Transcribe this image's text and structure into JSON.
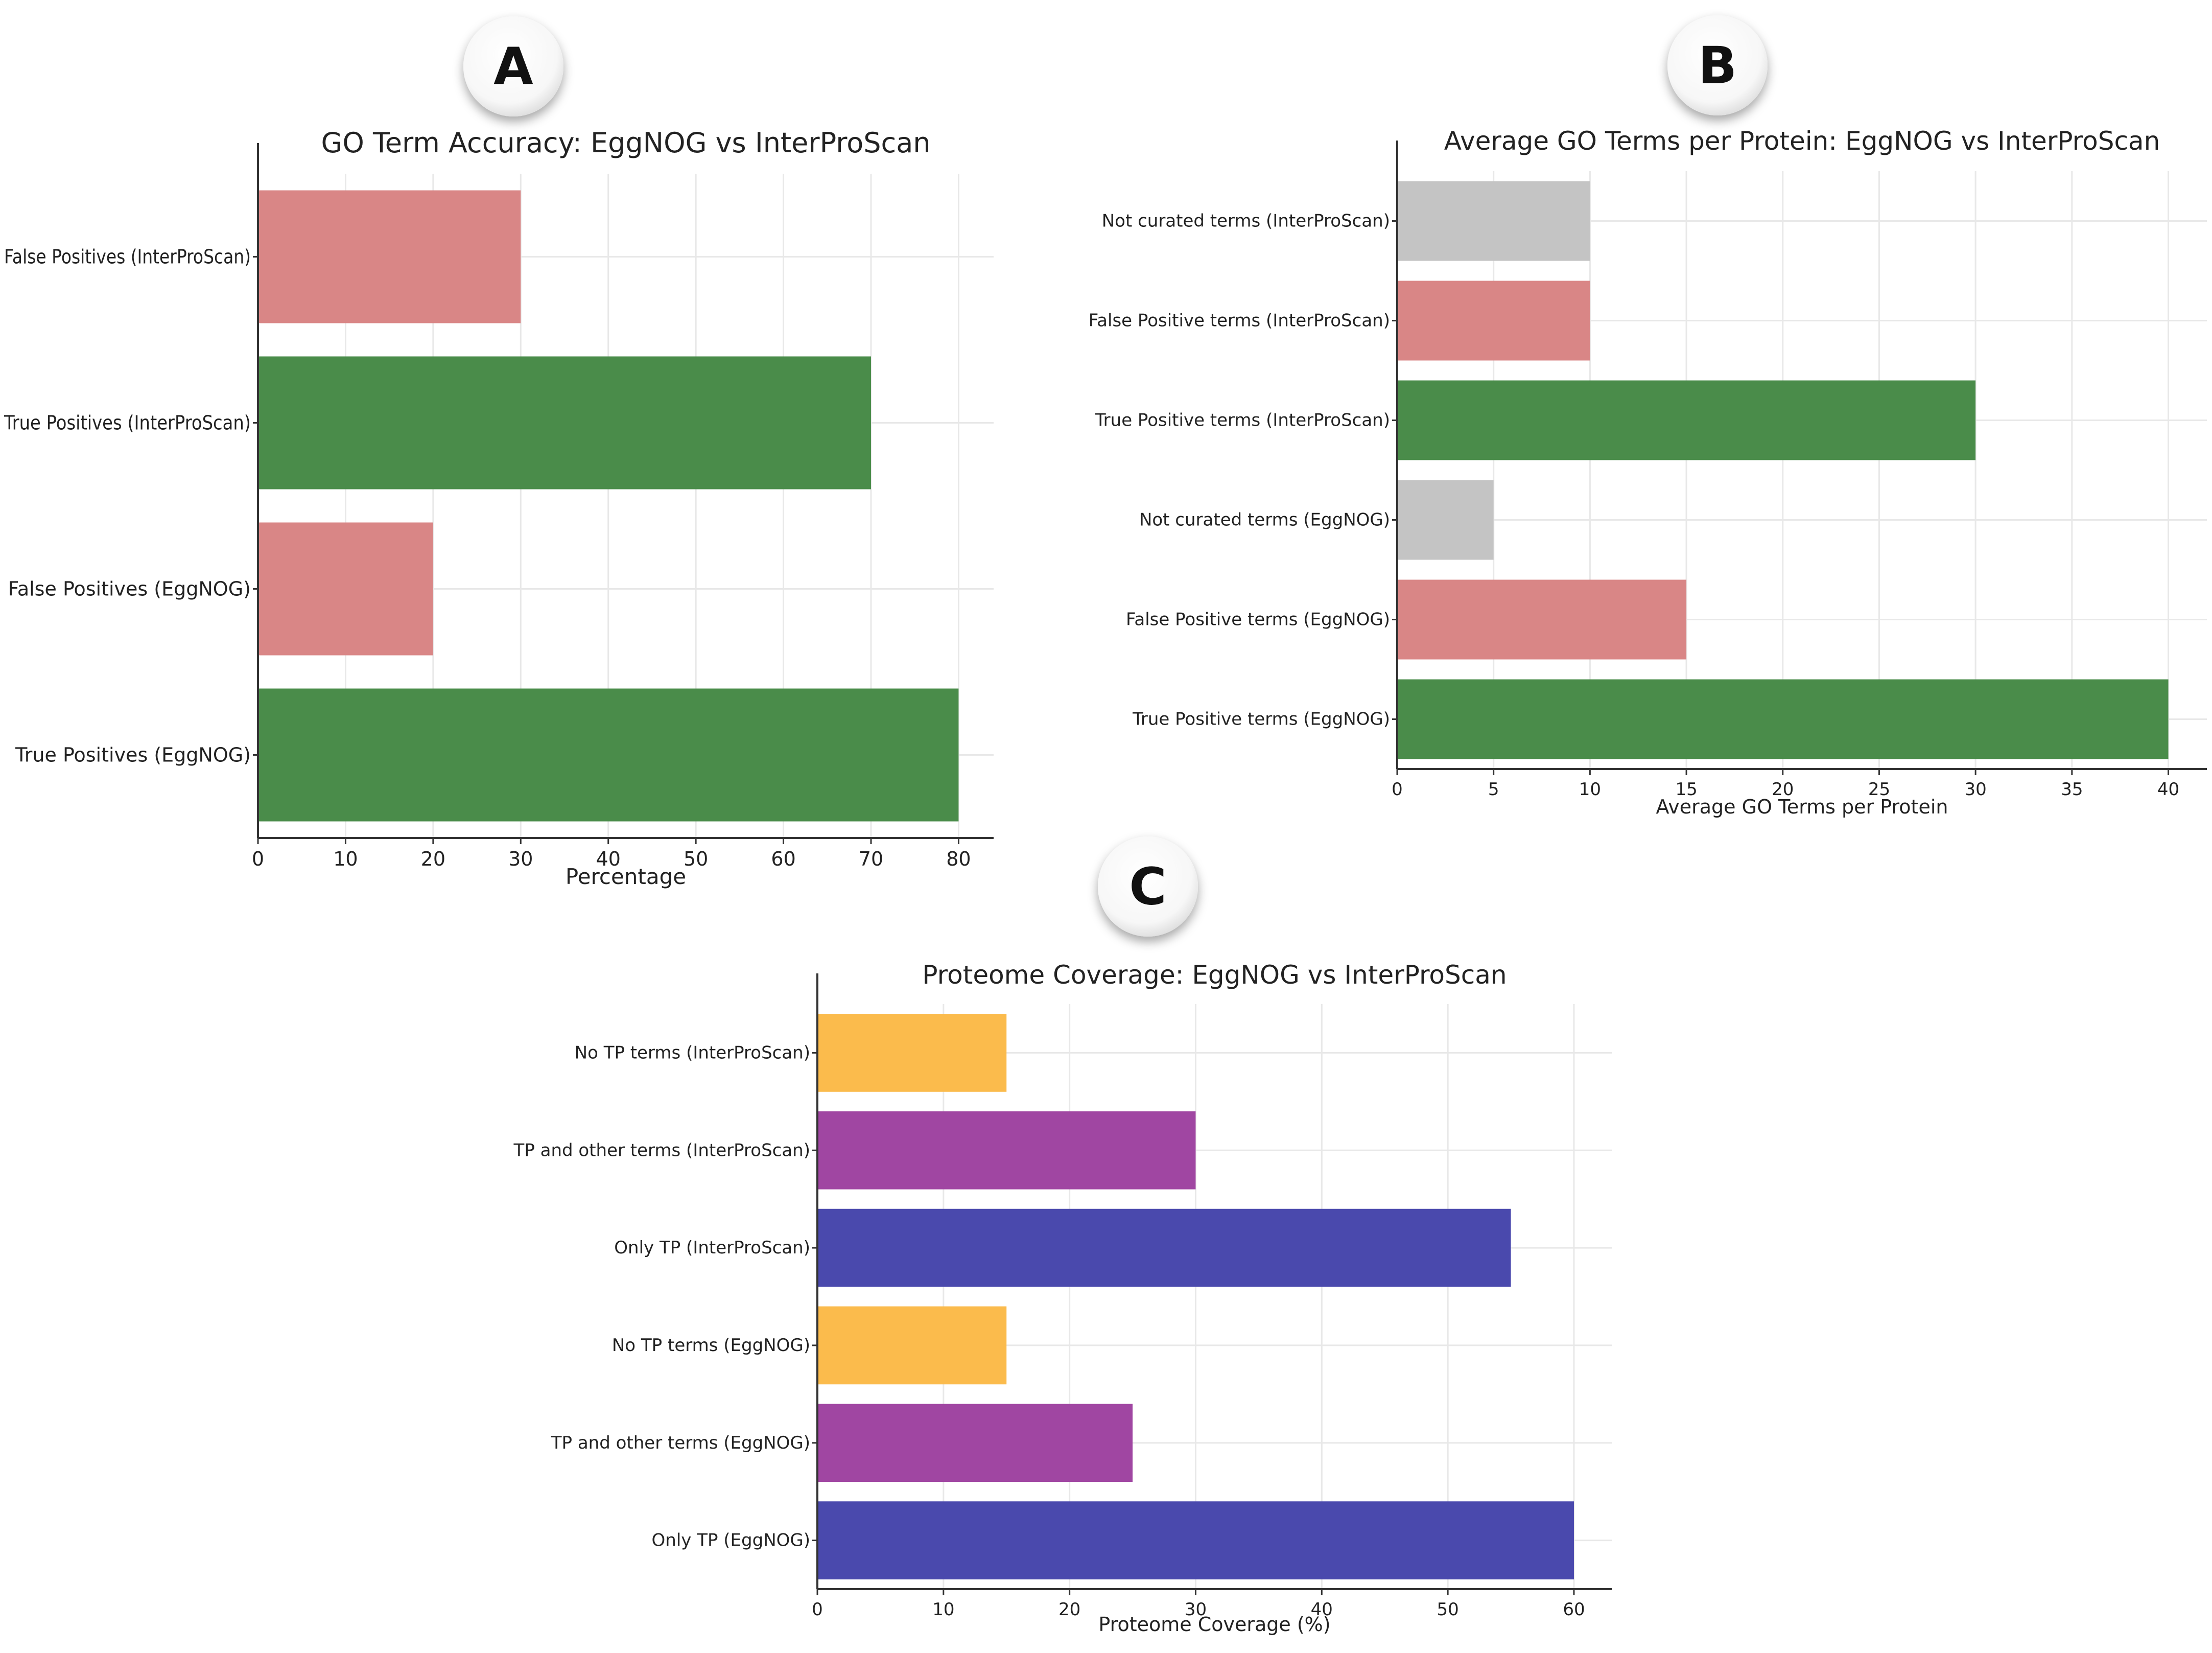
{
  "panels": [
    "A",
    "B",
    "C"
  ],
  "colors": {
    "true_positive": "#4a8c4a",
    "false_positive": "#d98686",
    "not_curated": "#c4c4c4",
    "no_tp": "#fbbb4c",
    "tp_and_other": "#a046a2",
    "only_tp": "#4a49ad",
    "grid": "#e8e8e8",
    "axis": "#333333",
    "text": "#222222"
  },
  "chart_data": [
    {
      "type": "bar",
      "orientation": "horizontal",
      "panel": "A",
      "title": "GO Term Accuracy: EggNOG vs InterProScan",
      "xlabel": "Percentage",
      "ylabel": "",
      "xlim": [
        0,
        84
      ],
      "xticks": [
        0,
        10,
        20,
        30,
        40,
        50,
        60,
        70,
        80
      ],
      "grid": true,
      "categories": [
        "False Positives (InterProScan)",
        "True Positives (InterProScan)",
        "False Positives (EggNOG)",
        "True Positives (EggNOG)"
      ],
      "values": [
        30,
        70,
        20,
        80
      ],
      "bar_colors": [
        "false_positive",
        "true_positive",
        "false_positive",
        "true_positive"
      ]
    },
    {
      "type": "bar",
      "orientation": "horizontal",
      "panel": "B",
      "title": "Average GO Terms per Protein: EggNOG vs InterProScan",
      "xlabel": "Average GO Terms per Protein",
      "ylabel": "",
      "xlim": [
        0,
        42
      ],
      "xticks": [
        0,
        5,
        10,
        15,
        20,
        25,
        30,
        35,
        40
      ],
      "grid": true,
      "categories": [
        "Not curated terms (InterProScan)",
        "False Positive terms (InterProScan)",
        "True Positive terms (InterProScan)",
        "Not curated terms (EggNOG)",
        "False Positive terms (EggNOG)",
        "True Positive terms (EggNOG)"
      ],
      "values": [
        10,
        10,
        30,
        5,
        15,
        40
      ],
      "bar_colors": [
        "not_curated",
        "false_positive",
        "true_positive",
        "not_curated",
        "false_positive",
        "true_positive"
      ]
    },
    {
      "type": "bar",
      "orientation": "horizontal",
      "panel": "C",
      "title": "Proteome Coverage: EggNOG vs InterProScan",
      "xlabel": "Proteome Coverage (%)",
      "ylabel": "",
      "xlim": [
        0,
        63
      ],
      "xticks": [
        0,
        10,
        20,
        30,
        40,
        50,
        60
      ],
      "grid": true,
      "categories": [
        "No TP terms (InterProScan)",
        "TP and other terms (InterProScan)",
        "Only TP (InterProScan)",
        "No TP terms (EggNOG)",
        "TP and other terms (EggNOG)",
        "Only TP (EggNOG)"
      ],
      "values": [
        15,
        30,
        55,
        15,
        25,
        60
      ],
      "bar_colors": [
        "no_tp",
        "tp_and_other",
        "only_tp",
        "no_tp",
        "tp_and_other",
        "only_tp"
      ]
    }
  ]
}
